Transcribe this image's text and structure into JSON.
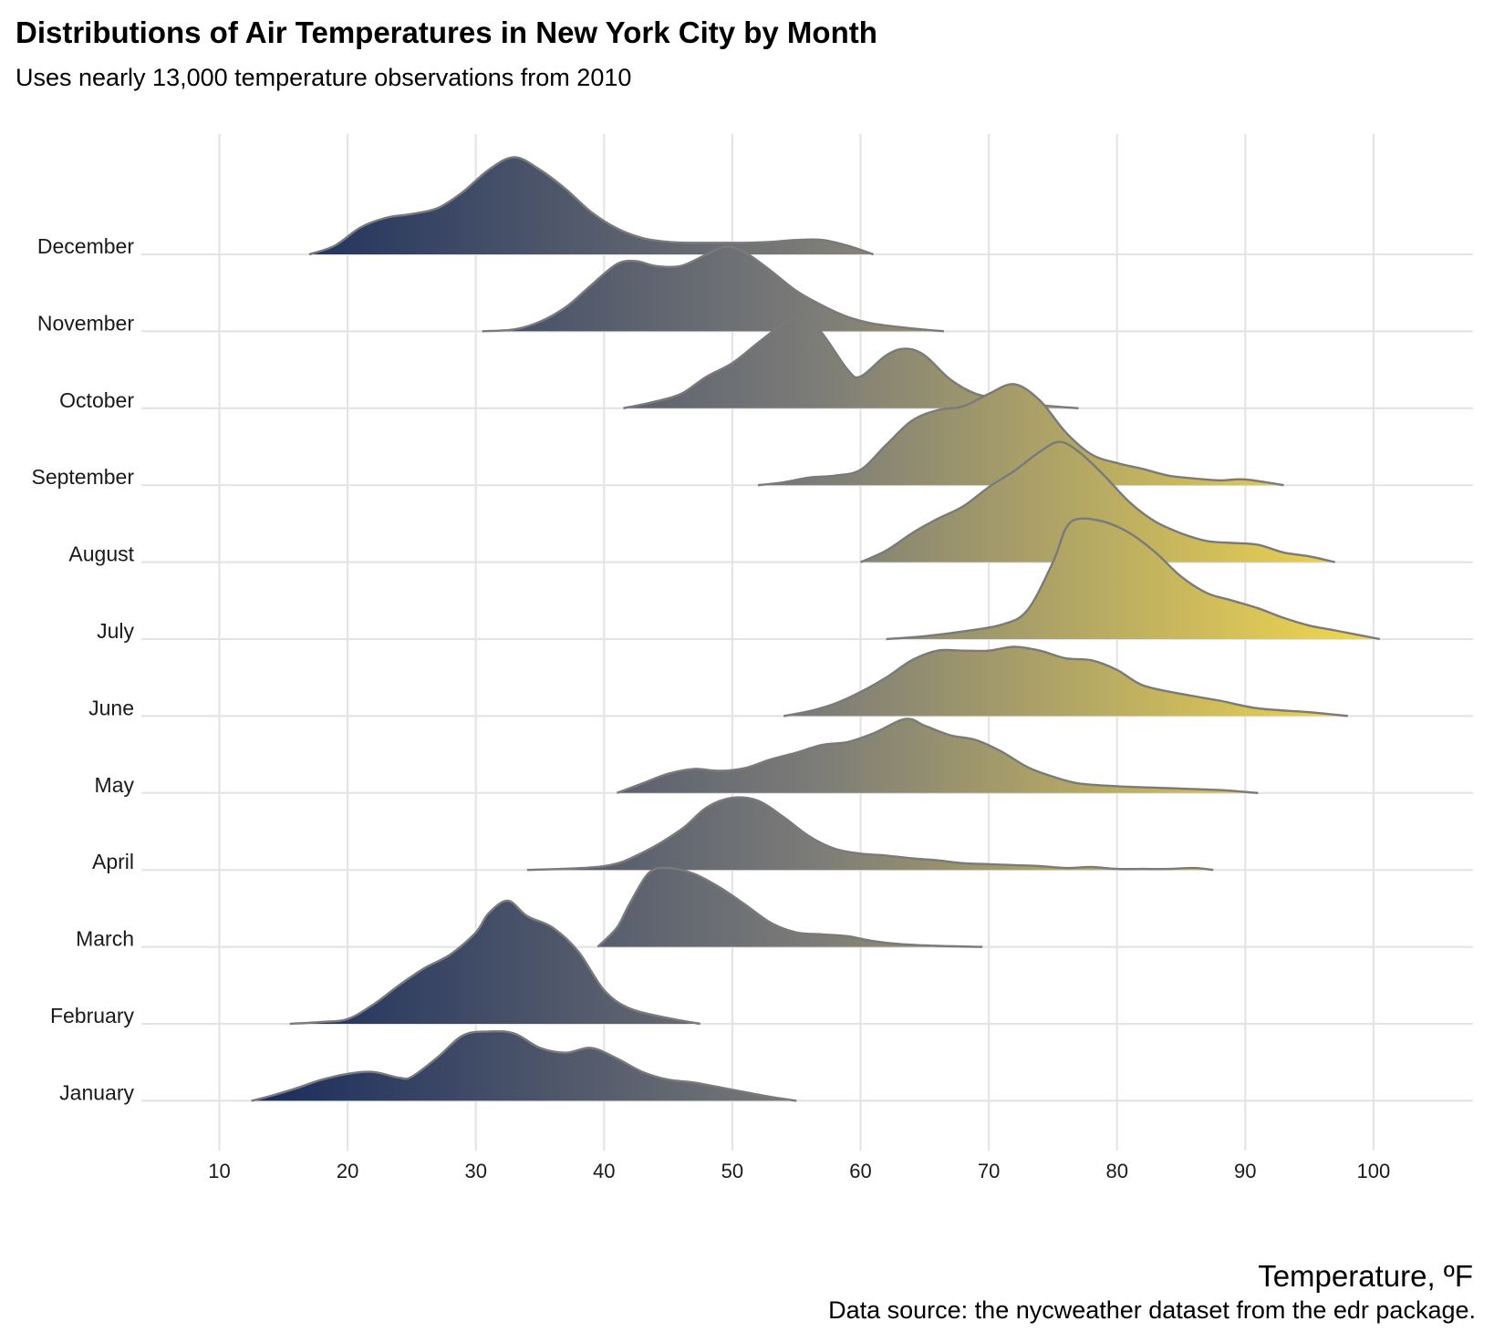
{
  "title": "Distributions of Air Temperatures in New York City by Month",
  "subtitle": "Uses nearly 13,000 temperature observations from 2010",
  "caption": "Data source: the nycweather dataset from the edr package.",
  "colors": {
    "gradient_low": "#1a2c5b",
    "gradient_mid": "#7c7c78",
    "gradient_high": "#f2d84e",
    "outline": "#7a7a7a",
    "gridline": "#e4e4e4",
    "background": "#ffffff"
  },
  "chart_data": {
    "type": "ridgeline",
    "title": "Distributions of Air Temperatures in New York City by Month",
    "subtitle": "Uses nearly 13,000 temperature observations from 2010",
    "xlabel": "Temperature, ºF",
    "ylabel": "",
    "xlim": [
      5,
      109
    ],
    "x_ticks": [
      10,
      20,
      30,
      40,
      50,
      60,
      70,
      80,
      90,
      100
    ],
    "fill": "gradient by temperature (dark navy at cold, gray at ~55, yellow at hot)",
    "grid": true,
    "legend": "none",
    "height_scale": 2.1,
    "months": [
      {
        "name": "January",
        "points": [
          [
            12.5,
            0
          ],
          [
            14,
            0.05
          ],
          [
            16,
            0.13
          ],
          [
            18,
            0.22
          ],
          [
            20,
            0.28
          ],
          [
            22,
            0.3
          ],
          [
            24,
            0.24
          ],
          [
            25,
            0.25
          ],
          [
            27,
            0.45
          ],
          [
            29,
            0.68
          ],
          [
            31,
            0.72
          ],
          [
            33,
            0.7
          ],
          [
            35,
            0.55
          ],
          [
            37,
            0.5
          ],
          [
            39,
            0.55
          ],
          [
            41,
            0.44
          ],
          [
            43,
            0.3
          ],
          [
            45,
            0.22
          ],
          [
            47,
            0.19
          ],
          [
            49,
            0.14
          ],
          [
            51,
            0.09
          ],
          [
            53,
            0.04
          ],
          [
            55,
            0
          ]
        ]
      },
      {
        "name": "February",
        "points": [
          [
            15.5,
            0
          ],
          [
            18,
            0.02
          ],
          [
            20,
            0.05
          ],
          [
            22,
            0.2
          ],
          [
            24,
            0.4
          ],
          [
            26,
            0.58
          ],
          [
            28,
            0.72
          ],
          [
            30,
            0.95
          ],
          [
            31,
            1.15
          ],
          [
            32.5,
            1.28
          ],
          [
            34,
            1.12
          ],
          [
            36,
            1.0
          ],
          [
            38,
            0.75
          ],
          [
            40,
            0.35
          ],
          [
            42,
            0.16
          ],
          [
            45,
            0.06
          ],
          [
            47.5,
            0
          ]
        ]
      },
      {
        "name": "March",
        "points": [
          [
            39.5,
            0
          ],
          [
            41,
            0.2
          ],
          [
            42,
            0.45
          ],
          [
            43.5,
            0.77
          ],
          [
            45,
            0.82
          ],
          [
            47,
            0.76
          ],
          [
            49,
            0.62
          ],
          [
            51,
            0.44
          ],
          [
            53,
            0.25
          ],
          [
            55,
            0.15
          ],
          [
            57,
            0.13
          ],
          [
            59,
            0.11
          ],
          [
            61,
            0.06
          ],
          [
            63,
            0.03
          ],
          [
            66,
            0.01
          ],
          [
            69.5,
            0
          ]
        ]
      },
      {
        "name": "April",
        "points": [
          [
            34,
            0
          ],
          [
            40,
            0.04
          ],
          [
            43,
            0.18
          ],
          [
            46,
            0.42
          ],
          [
            48,
            0.65
          ],
          [
            50,
            0.75
          ],
          [
            52,
            0.72
          ],
          [
            54,
            0.55
          ],
          [
            56,
            0.35
          ],
          [
            58,
            0.22
          ],
          [
            60,
            0.17
          ],
          [
            62,
            0.15
          ],
          [
            64,
            0.12
          ],
          [
            66,
            0.1
          ],
          [
            68,
            0.07
          ],
          [
            70,
            0.06
          ],
          [
            72,
            0.05
          ],
          [
            74,
            0.04
          ],
          [
            76,
            0.02
          ],
          [
            78,
            0.03
          ],
          [
            80,
            0.01
          ],
          [
            82,
            0.01
          ],
          [
            84,
            0.01
          ],
          [
            86,
            0.02
          ],
          [
            87.5,
            0
          ]
        ]
      },
      {
        "name": "May",
        "points": [
          [
            41,
            0
          ],
          [
            43,
            0.1
          ],
          [
            45,
            0.2
          ],
          [
            47,
            0.25
          ],
          [
            49,
            0.23
          ],
          [
            51,
            0.26
          ],
          [
            53,
            0.35
          ],
          [
            55,
            0.42
          ],
          [
            57,
            0.5
          ],
          [
            59,
            0.53
          ],
          [
            61,
            0.62
          ],
          [
            63.5,
            0.77
          ],
          [
            65,
            0.7
          ],
          [
            67,
            0.6
          ],
          [
            69,
            0.55
          ],
          [
            71,
            0.43
          ],
          [
            73,
            0.27
          ],
          [
            75,
            0.17
          ],
          [
            77,
            0.1
          ],
          [
            80,
            0.07
          ],
          [
            84,
            0.05
          ],
          [
            88,
            0.03
          ],
          [
            91,
            0
          ]
        ]
      },
      {
        "name": "June",
        "points": [
          [
            54,
            0
          ],
          [
            56,
            0.05
          ],
          [
            58,
            0.13
          ],
          [
            60,
            0.25
          ],
          [
            62,
            0.4
          ],
          [
            64,
            0.58
          ],
          [
            66,
            0.68
          ],
          [
            68,
            0.68
          ],
          [
            70,
            0.68
          ],
          [
            72,
            0.72
          ],
          [
            74,
            0.68
          ],
          [
            76,
            0.6
          ],
          [
            78,
            0.58
          ],
          [
            80,
            0.48
          ],
          [
            82,
            0.32
          ],
          [
            85,
            0.23
          ],
          [
            88,
            0.16
          ],
          [
            91,
            0.08
          ],
          [
            95,
            0.04
          ],
          [
            98,
            0
          ]
        ]
      },
      {
        "name": "July",
        "points": [
          [
            62,
            0
          ],
          [
            65,
            0.03
          ],
          [
            68,
            0.08
          ],
          [
            71,
            0.15
          ],
          [
            73,
            0.3
          ],
          [
            75,
            0.8
          ],
          [
            76,
            1.15
          ],
          [
            77,
            1.25
          ],
          [
            79,
            1.22
          ],
          [
            81,
            1.1
          ],
          [
            83,
            0.9
          ],
          [
            85,
            0.65
          ],
          [
            87,
            0.48
          ],
          [
            89,
            0.4
          ],
          [
            91,
            0.32
          ],
          [
            93,
            0.22
          ],
          [
            95,
            0.14
          ],
          [
            97,
            0.09
          ],
          [
            100.5,
            0
          ]
        ]
      },
      {
        "name": "August",
        "points": [
          [
            60,
            0
          ],
          [
            62,
            0.12
          ],
          [
            64,
            0.3
          ],
          [
            66,
            0.45
          ],
          [
            68,
            0.58
          ],
          [
            70,
            0.78
          ],
          [
            72,
            0.95
          ],
          [
            74,
            1.15
          ],
          [
            75.5,
            1.25
          ],
          [
            77,
            1.15
          ],
          [
            79,
            0.9
          ],
          [
            81,
            0.62
          ],
          [
            83,
            0.42
          ],
          [
            85,
            0.3
          ],
          [
            87,
            0.22
          ],
          [
            89,
            0.2
          ],
          [
            91,
            0.18
          ],
          [
            93,
            0.1
          ],
          [
            95,
            0.06
          ],
          [
            97,
            0
          ]
        ]
      },
      {
        "name": "September",
        "points": [
          [
            52,
            0
          ],
          [
            54,
            0.03
          ],
          [
            56,
            0.08
          ],
          [
            58,
            0.1
          ],
          [
            60,
            0.16
          ],
          [
            62,
            0.42
          ],
          [
            64,
            0.67
          ],
          [
            66,
            0.78
          ],
          [
            68,
            0.82
          ],
          [
            70,
            0.95
          ],
          [
            72,
            1.05
          ],
          [
            74,
            0.88
          ],
          [
            76,
            0.55
          ],
          [
            78,
            0.32
          ],
          [
            80,
            0.23
          ],
          [
            82,
            0.17
          ],
          [
            84,
            0.1
          ],
          [
            86,
            0.07
          ],
          [
            88,
            0.05
          ],
          [
            90,
            0.06
          ],
          [
            93,
            0
          ]
        ]
      },
      {
        "name": "October",
        "points": [
          [
            41.5,
            0
          ],
          [
            44,
            0.07
          ],
          [
            46,
            0.15
          ],
          [
            48,
            0.33
          ],
          [
            50,
            0.47
          ],
          [
            52,
            0.68
          ],
          [
            54,
            0.88
          ],
          [
            55.5,
            0.95
          ],
          [
            57,
            0.78
          ],
          [
            59,
            0.4
          ],
          [
            60,
            0.33
          ],
          [
            62,
            0.55
          ],
          [
            63.5,
            0.62
          ],
          [
            65,
            0.55
          ],
          [
            67,
            0.3
          ],
          [
            69,
            0.15
          ],
          [
            71,
            0.1
          ],
          [
            73,
            0.05
          ],
          [
            75,
            0.02
          ],
          [
            77,
            0
          ]
        ]
      },
      {
        "name": "November",
        "points": [
          [
            30.5,
            0
          ],
          [
            33,
            0.02
          ],
          [
            35,
            0.1
          ],
          [
            37,
            0.25
          ],
          [
            39,
            0.48
          ],
          [
            41,
            0.7
          ],
          [
            42.5,
            0.73
          ],
          [
            44,
            0.68
          ],
          [
            46,
            0.68
          ],
          [
            48,
            0.8
          ],
          [
            49.5,
            0.88
          ],
          [
            51,
            0.82
          ],
          [
            53,
            0.63
          ],
          [
            55,
            0.42
          ],
          [
            57,
            0.27
          ],
          [
            59,
            0.15
          ],
          [
            61,
            0.08
          ],
          [
            64,
            0.03
          ],
          [
            66.5,
            0
          ]
        ]
      },
      {
        "name": "December",
        "points": [
          [
            17,
            0
          ],
          [
            19,
            0.09
          ],
          [
            21,
            0.28
          ],
          [
            23,
            0.38
          ],
          [
            25,
            0.42
          ],
          [
            27,
            0.48
          ],
          [
            29,
            0.65
          ],
          [
            31,
            0.88
          ],
          [
            33,
            1.01
          ],
          [
            35,
            0.88
          ],
          [
            37,
            0.68
          ],
          [
            39,
            0.44
          ],
          [
            41,
            0.27
          ],
          [
            43,
            0.17
          ],
          [
            45,
            0.13
          ],
          [
            47,
            0.12
          ],
          [
            49,
            0.12
          ],
          [
            51,
            0.12
          ],
          [
            53,
            0.13
          ],
          [
            55,
            0.15
          ],
          [
            57,
            0.15
          ],
          [
            59,
            0.09
          ],
          [
            61,
            0
          ]
        ]
      }
    ]
  }
}
